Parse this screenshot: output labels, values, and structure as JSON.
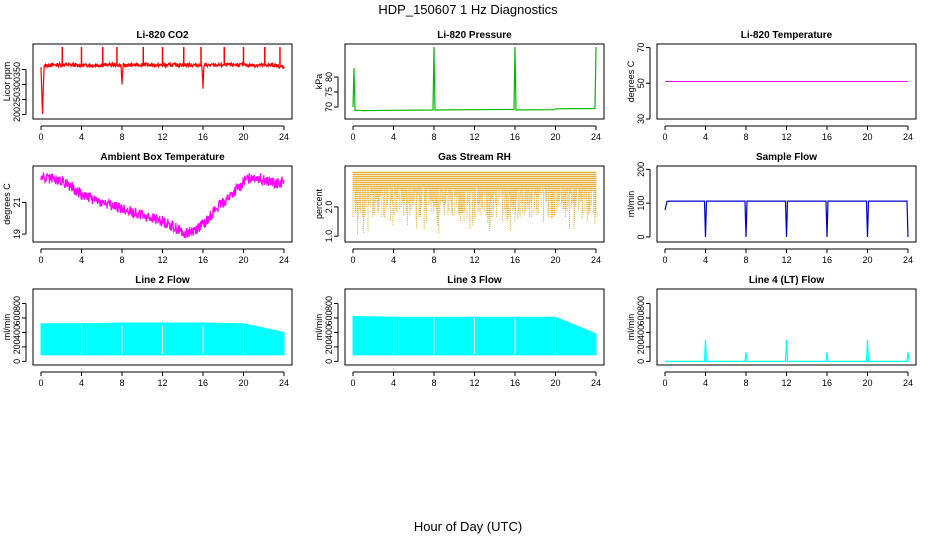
{
  "page": {
    "title": "HDP_150607  1 Hz Diagnostics",
    "xlabel": "Hour of Day (UTC)"
  },
  "chart_data": [
    {
      "type": "line",
      "title": "Li-820 CO2",
      "ylabel": "Licor ppm",
      "xlim": [
        0,
        24
      ],
      "ylim": [
        185,
        435
      ],
      "x_ticks": [
        0,
        4,
        8,
        12,
        16,
        20,
        24
      ],
      "y_ticks": [
        200,
        250,
        300,
        350
      ],
      "color": "#ff0000",
      "series": [
        {
          "x": [
            0,
            0.15,
            0.3,
            0.6,
            1,
            2,
            3,
            4,
            5,
            6,
            7,
            7.9,
            8,
            8.1,
            9,
            10,
            11,
            12,
            13,
            14,
            15,
            15.9,
            16,
            16.1,
            17,
            18,
            19,
            20,
            21,
            22,
            23,
            24
          ],
          "y": [
            355,
            195,
            362,
            364,
            365,
            366,
            365,
            364,
            364,
            365,
            366,
            364,
            300,
            364,
            365,
            366,
            365,
            364,
            365,
            366,
            365,
            364,
            290,
            365,
            364,
            365,
            366,
            365,
            364,
            365,
            364,
            357
          ]
        }
      ],
      "spikes": [
        {
          "x": 2.1,
          "y": 425
        },
        {
          "x": 4.0,
          "y": 425
        },
        {
          "x": 6.1,
          "y": 425
        },
        {
          "x": 7.5,
          "y": 425
        },
        {
          "x": 10.1,
          "y": 425
        },
        {
          "x": 12.0,
          "y": 425
        },
        {
          "x": 14.1,
          "y": 425
        },
        {
          "x": 15.8,
          "y": 425
        },
        {
          "x": 18.1,
          "y": 425
        },
        {
          "x": 20.0,
          "y": 425
        },
        {
          "x": 22.1,
          "y": 425
        },
        {
          "x": 23.6,
          "y": 425
        }
      ]
    },
    {
      "type": "line",
      "title": "Li-820 Pressure",
      "ylabel": "kPa",
      "xlim": [
        0,
        24
      ],
      "ylim": [
        66,
        91
      ],
      "x_ticks": [
        0,
        4,
        8,
        12,
        16,
        20,
        24
      ],
      "y_ticks": [
        70,
        75,
        80
      ],
      "color": "#00bb00",
      "series": [
        {
          "x": [
            0,
            0.1,
            0.2,
            0.4,
            1,
            4,
            7.9,
            8,
            8.1,
            12,
            15.9,
            16,
            16.1,
            19.9,
            20,
            23.9,
            24
          ],
          "y": [
            70,
            83,
            68.8,
            68.9,
            68.8,
            68.9,
            69.0,
            90,
            69.0,
            69.1,
            69.2,
            90,
            69.0,
            69.1,
            69.4,
            69.5,
            90
          ]
        }
      ]
    },
    {
      "type": "line",
      "title": "Li-820 Temperature",
      "ylabel": "degrees C",
      "xlim": [
        0,
        24
      ],
      "ylim": [
        30,
        72
      ],
      "x_ticks": [
        0,
        4,
        8,
        12,
        16,
        20,
        24
      ],
      "y_ticks": [
        30,
        50,
        70
      ],
      "color": "#ff00ff",
      "series": [
        {
          "x": [
            0,
            24
          ],
          "y": [
            51,
            51
          ]
        }
      ]
    },
    {
      "type": "line",
      "title": "Ambient Box Temperature",
      "ylabel": "degrees C",
      "xlim": [
        0,
        24
      ],
      "ylim": [
        18.5,
        23.3
      ],
      "x_ticks": [
        0,
        4,
        8,
        12,
        16,
        20,
        24
      ],
      "y_ticks": [
        19,
        21
      ],
      "color": "#ff00ff",
      "series": [
        {
          "x": [
            0,
            2,
            3,
            4,
            6,
            8,
            10,
            12,
            13,
            14,
            15,
            16,
            17,
            18,
            19,
            20,
            21,
            22,
            23,
            24
          ],
          "y": [
            22.6,
            22.4,
            22.0,
            21.5,
            21.0,
            20.6,
            20.2,
            19.8,
            19.5,
            19.1,
            19.2,
            19.6,
            20.4,
            21.0,
            21.6,
            22.3,
            22.7,
            22.4,
            22.2,
            22.3
          ]
        }
      ]
    },
    {
      "type": "line",
      "title": "Gas Stream RH",
      "ylabel": "percent",
      "xlim": [
        0,
        24
      ],
      "ylim": [
        0.8,
        3.4
      ],
      "x_ticks": [
        0,
        4,
        8,
        12,
        16,
        20,
        24
      ],
      "y_ticks": [
        1.0,
        2.0
      ],
      "color": "#dd9900",
      "series": [
        {
          "x": [
            0,
            24
          ],
          "y": [
            3.2,
            3.2
          ]
        }
      ]
    },
    {
      "type": "line",
      "title": "Sample Flow",
      "ylabel": "ml/min",
      "xlim": [
        0,
        24
      ],
      "ylim": [
        -15,
        210
      ],
      "x_ticks": [
        0,
        4,
        8,
        12,
        16,
        20,
        24
      ],
      "y_ticks": [
        0,
        100,
        200
      ],
      "color": "#0000cc",
      "series": [
        {
          "x": [
            0,
            0.2,
            0.5,
            3.9,
            4.0,
            4.1,
            7.9,
            8.0,
            8.1,
            11.9,
            12.0,
            12.1,
            15.9,
            16.0,
            16.1,
            19.9,
            20.0,
            20.1,
            23.9,
            24
          ],
          "y": [
            80,
            105,
            106,
            106,
            0,
            106,
            106,
            0,
            106,
            106,
            0,
            106,
            106,
            0,
            106,
            106,
            0,
            106,
            106,
            0
          ]
        }
      ]
    },
    {
      "type": "area",
      "title": "Line 2 Flow",
      "ylabel": "ml/min",
      "xlim": [
        0,
        24
      ],
      "ylim": [
        -50,
        1000
      ],
      "x_ticks": [
        0,
        4,
        8,
        12,
        16,
        20,
        24
      ],
      "y_ticks": [
        0,
        200,
        400,
        600,
        800
      ],
      "color": "#00ffff",
      "series": [
        {
          "x": [
            0,
            4,
            8,
            12,
            16,
            20,
            24
          ],
          "upper": [
            520,
            520,
            530,
            530,
            530,
            520,
            400
          ],
          "lower": [
            90,
            90,
            90,
            90,
            90,
            90,
            90
          ]
        }
      ]
    },
    {
      "type": "area",
      "title": "Line 3 Flow",
      "ylabel": "ml/min",
      "xlim": [
        0,
        24
      ],
      "ylim": [
        -50,
        1000
      ],
      "x_ticks": [
        0,
        4,
        8,
        12,
        16,
        20,
        24
      ],
      "y_ticks": [
        0,
        200,
        400,
        600,
        800
      ],
      "color": "#00ffff",
      "series": [
        {
          "x": [
            0,
            4,
            8,
            12,
            16,
            20,
            24
          ],
          "upper": [
            620,
            610,
            610,
            610,
            610,
            610,
            380
          ],
          "lower": [
            90,
            90,
            90,
            90,
            90,
            90,
            90
          ]
        }
      ]
    },
    {
      "type": "line",
      "title": "Line 4 (LT) Flow",
      "ylabel": "ml/min",
      "xlim": [
        0,
        24
      ],
      "ylim": [
        -50,
        1000
      ],
      "x_ticks": [
        0,
        4,
        8,
        12,
        16,
        20,
        24
      ],
      "y_ticks": [
        0,
        200,
        400,
        600,
        800
      ],
      "color": "#00ffff",
      "series": [
        {
          "x": [
            0,
            3.9,
            4.0,
            4.1,
            7.9,
            8.0,
            8.1,
            11.9,
            12.0,
            12.1,
            15.9,
            16.0,
            16.1,
            19.9,
            20.0,
            20.1,
            23.9,
            24.0,
            24.1
          ],
          "y": [
            0,
            0,
            300,
            0,
            0,
            130,
            0,
            0,
            300,
            0,
            0,
            130,
            0,
            0,
            300,
            0,
            0,
            130,
            0
          ]
        }
      ]
    }
  ]
}
